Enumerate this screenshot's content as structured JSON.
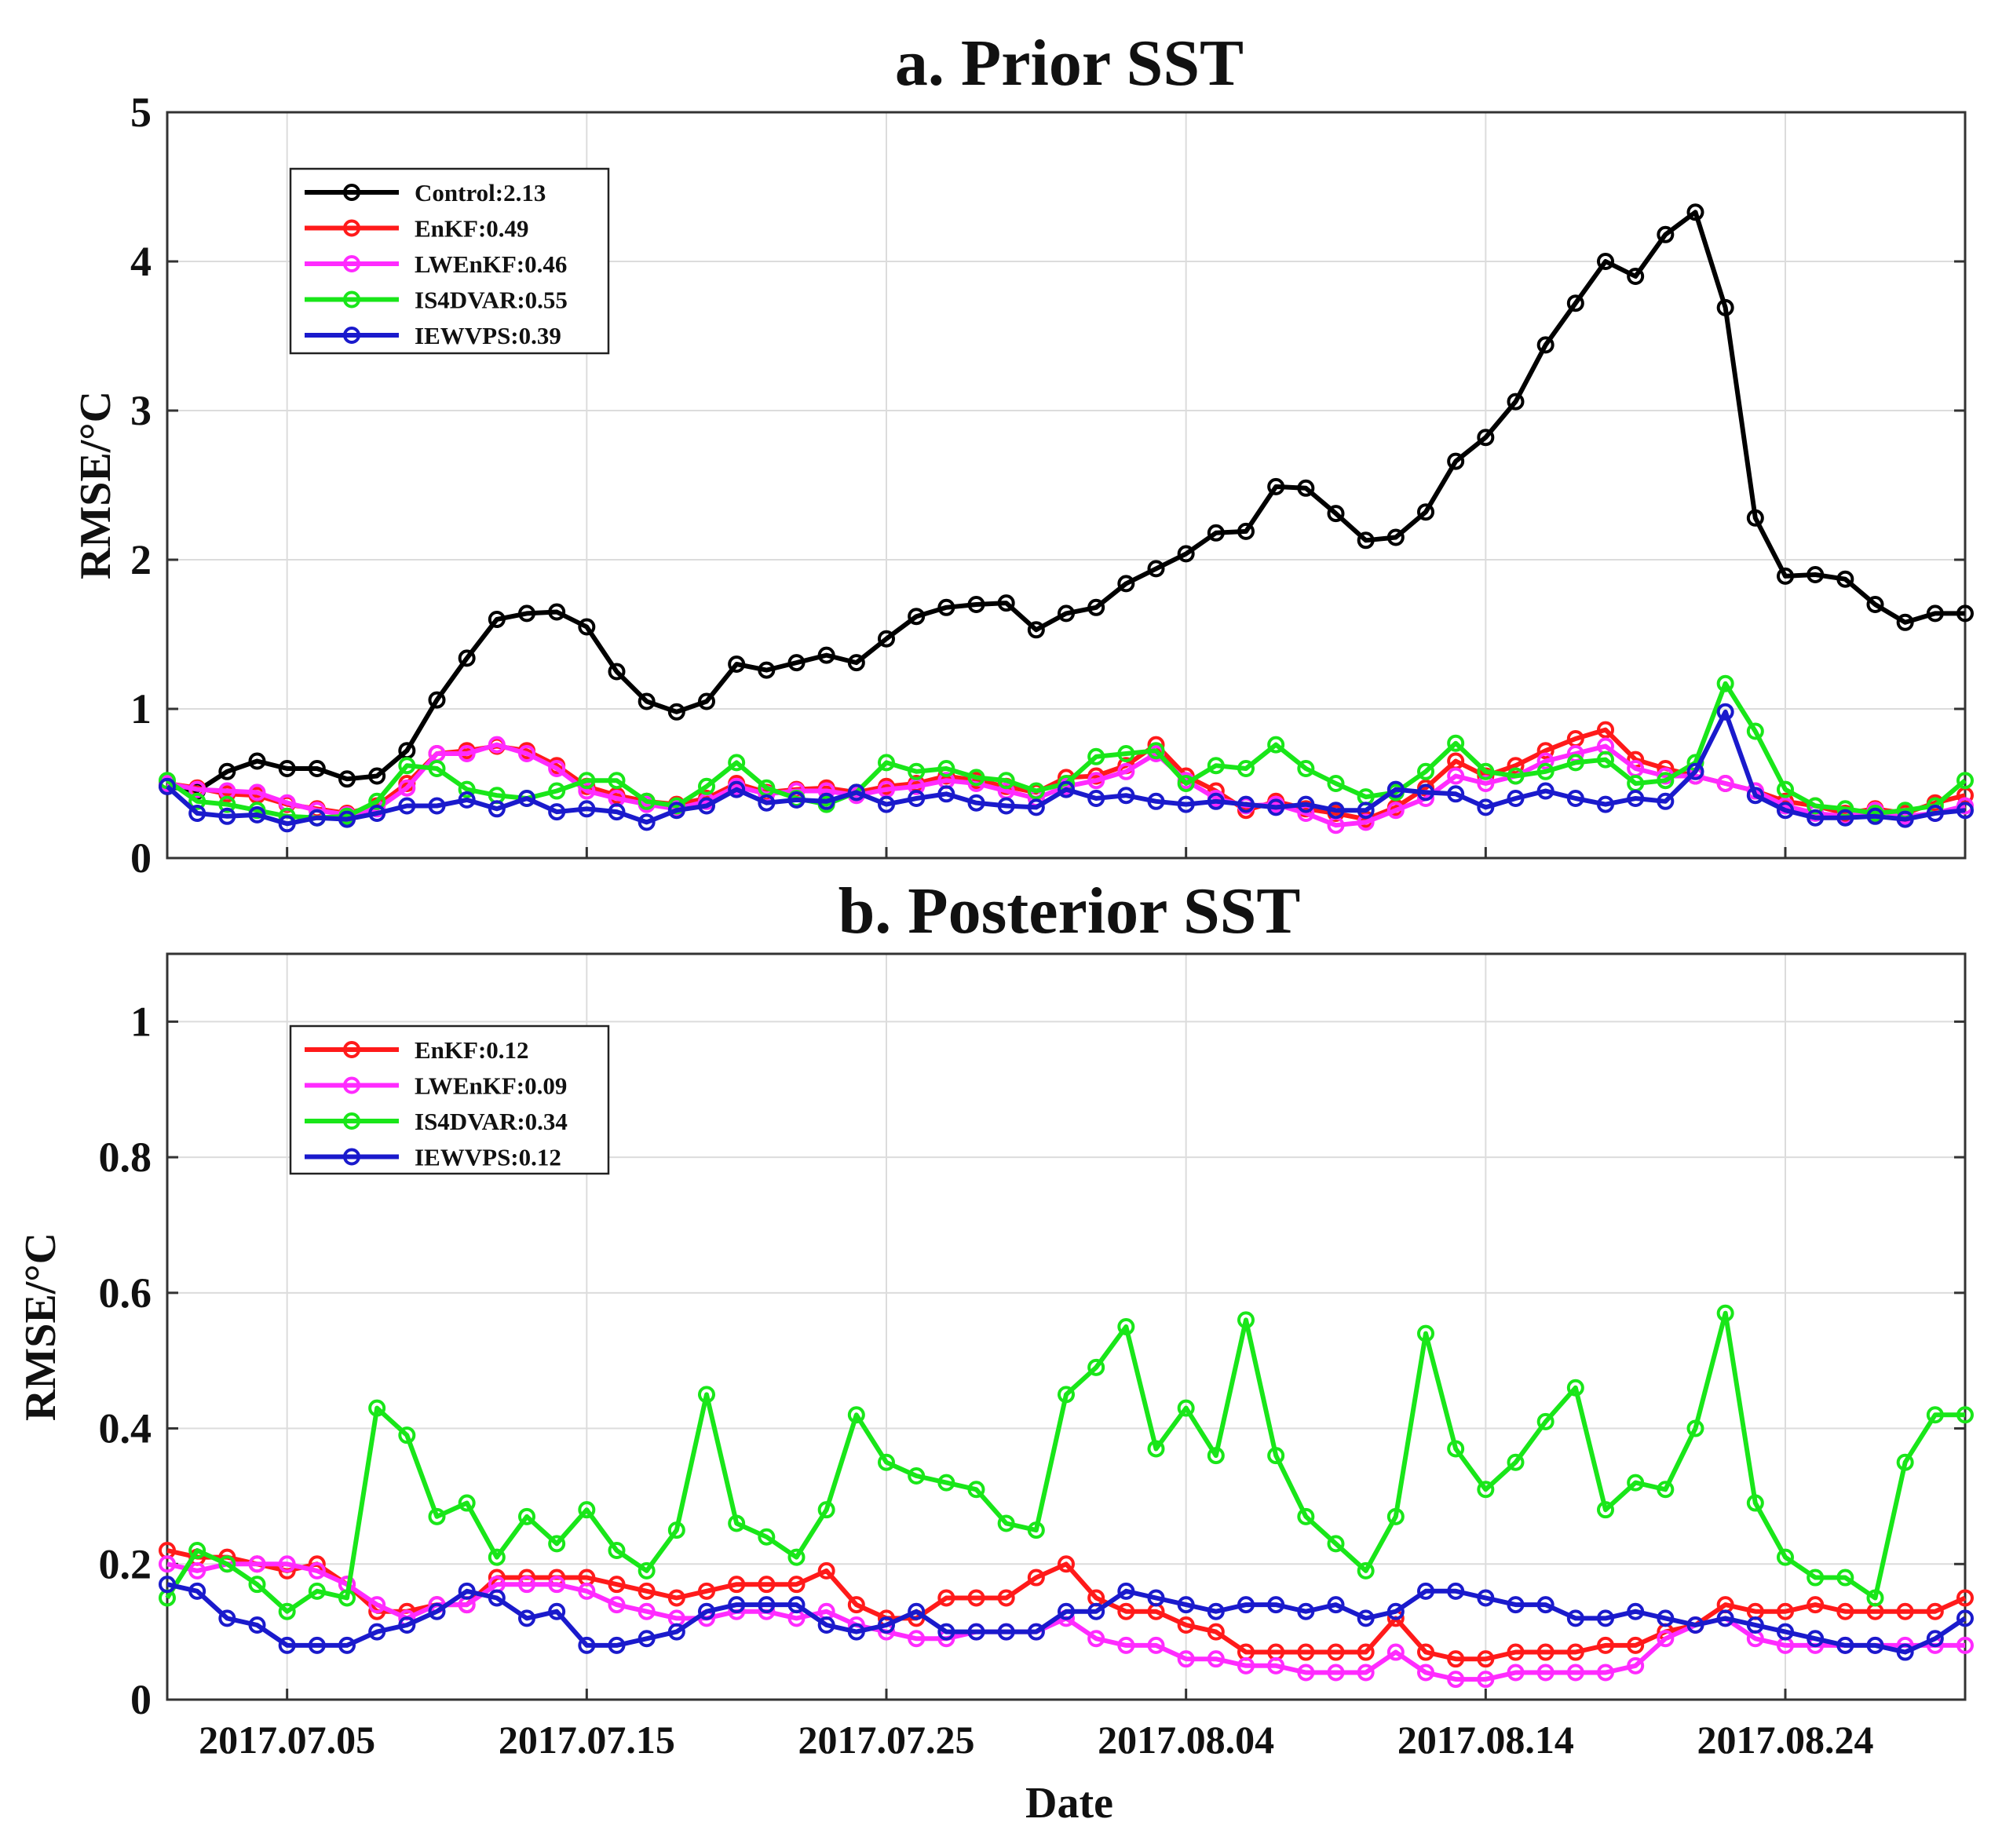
{
  "chart_data": [
    {
      "type": "line",
      "title": "a. Prior SST",
      "xlabel": "",
      "ylabel": "RMSE/°C",
      "ylim": [
        0,
        5
      ],
      "yticks": [
        "0",
        "1",
        "2",
        "3",
        "4",
        "5"
      ],
      "x_start": "2017.07.01",
      "x_step_days": 1,
      "x_count": 61,
      "legend_position": "top-left",
      "grid": true,
      "series": [
        {
          "name": "Control",
          "label": "Control:2.13",
          "color": "#000000",
          "values": [
            0.48,
            0.45,
            0.58,
            0.65,
            0.6,
            0.6,
            0.53,
            0.55,
            0.72,
            1.06,
            1.34,
            1.6,
            1.64,
            1.65,
            1.55,
            1.25,
            1.05,
            0.98,
            1.05,
            1.3,
            1.26,
            1.31,
            1.36,
            1.31,
            1.47,
            1.62,
            1.68,
            1.7,
            1.71,
            1.53,
            1.64,
            1.68,
            1.84,
            1.94,
            2.04,
            2.18,
            2.19,
            2.49,
            2.48,
            2.31,
            2.13,
            2.15,
            2.32,
            2.66,
            2.82,
            3.06,
            3.44,
            3.72,
            4.0,
            3.9,
            4.18,
            4.33,
            3.69,
            2.28,
            1.89,
            1.9,
            1.87,
            1.7,
            1.58,
            1.64,
            1.64
          ]
        },
        {
          "name": "EnKF",
          "label": "EnKF:0.49",
          "color": "#ff1a1a",
          "values": [
            0.5,
            0.47,
            0.43,
            0.42,
            0.36,
            0.33,
            0.3,
            0.35,
            0.5,
            0.7,
            0.72,
            0.75,
            0.72,
            0.62,
            0.48,
            0.42,
            0.38,
            0.36,
            0.4,
            0.5,
            0.44,
            0.46,
            0.47,
            0.44,
            0.48,
            0.5,
            0.55,
            0.52,
            0.48,
            0.44,
            0.54,
            0.55,
            0.62,
            0.76,
            0.55,
            0.45,
            0.32,
            0.38,
            0.33,
            0.3,
            0.26,
            0.34,
            0.47,
            0.65,
            0.55,
            0.62,
            0.72,
            0.8,
            0.86,
            0.66,
            0.6,
            0.55,
            0.5,
            0.45,
            0.38,
            0.35,
            0.3,
            0.33,
            0.3,
            0.37,
            0.42
          ]
        },
        {
          "name": "LWEnKF",
          "label": "LWEnKF:0.46",
          "color": "#ff2bff",
          "values": [
            0.5,
            0.46,
            0.45,
            0.44,
            0.37,
            0.32,
            0.29,
            0.33,
            0.47,
            0.7,
            0.7,
            0.76,
            0.7,
            0.6,
            0.45,
            0.4,
            0.36,
            0.33,
            0.38,
            0.48,
            0.43,
            0.45,
            0.45,
            0.42,
            0.46,
            0.48,
            0.52,
            0.5,
            0.45,
            0.4,
            0.48,
            0.52,
            0.58,
            0.7,
            0.52,
            0.4,
            0.35,
            0.36,
            0.3,
            0.22,
            0.24,
            0.32,
            0.4,
            0.55,
            0.5,
            0.55,
            0.65,
            0.7,
            0.75,
            0.6,
            0.55,
            0.55,
            0.5,
            0.45,
            0.35,
            0.3,
            0.28,
            0.32,
            0.28,
            0.3,
            0.35
          ]
        },
        {
          "name": "IS4DVAR",
          "label": "IS4DVAR:0.55",
          "color": "#19e619",
          "values": [
            0.52,
            0.38,
            0.36,
            0.32,
            0.28,
            0.27,
            0.28,
            0.38,
            0.62,
            0.6,
            0.46,
            0.42,
            0.4,
            0.45,
            0.52,
            0.52,
            0.38,
            0.35,
            0.48,
            0.64,
            0.47,
            0.4,
            0.36,
            0.44,
            0.64,
            0.58,
            0.6,
            0.54,
            0.52,
            0.45,
            0.5,
            0.68,
            0.7,
            0.72,
            0.5,
            0.62,
            0.6,
            0.76,
            0.6,
            0.5,
            0.41,
            0.44,
            0.58,
            0.77,
            0.58,
            0.55,
            0.58,
            0.64,
            0.66,
            0.5,
            0.52,
            0.64,
            1.17,
            0.85,
            0.46,
            0.35,
            0.33,
            0.3,
            0.32,
            0.35,
            0.52
          ]
        },
        {
          "name": "IEWVPS",
          "label": "IEWVPS:0.39",
          "color": "#1a1acc",
          "values": [
            0.48,
            0.3,
            0.28,
            0.29,
            0.23,
            0.27,
            0.26,
            0.3,
            0.35,
            0.35,
            0.39,
            0.33,
            0.4,
            0.31,
            0.33,
            0.31,
            0.24,
            0.32,
            0.35,
            0.46,
            0.37,
            0.39,
            0.38,
            0.44,
            0.36,
            0.4,
            0.43,
            0.37,
            0.35,
            0.34,
            0.46,
            0.4,
            0.42,
            0.38,
            0.36,
            0.38,
            0.36,
            0.34,
            0.36,
            0.32,
            0.32,
            0.46,
            0.44,
            0.43,
            0.34,
            0.4,
            0.45,
            0.4,
            0.36,
            0.4,
            0.38,
            0.58,
            0.98,
            0.42,
            0.32,
            0.27,
            0.27,
            0.28,
            0.26,
            0.3,
            0.32
          ]
        }
      ]
    },
    {
      "type": "line",
      "title": "b. Posterior SST",
      "xlabel": "Date",
      "ylabel": "RMSE/°C",
      "ylim": [
        0,
        1.1
      ],
      "yticks": [
        "0",
        "0.2",
        "0.4",
        "0.6",
        "0.8",
        "1"
      ],
      "x_start": "2017.07.01",
      "x_step_days": 1,
      "x_count": 61,
      "xticks": [
        "2017.07.05",
        "2017.07.15",
        "2017.07.25",
        "2017.08.04",
        "2017.08.14",
        "2017.08.24"
      ],
      "legend_position": "top-left",
      "grid": true,
      "series": [
        {
          "name": "EnKF",
          "label": "EnKF:0.12",
          "color": "#ff1a1a",
          "values": [
            0.22,
            0.21,
            0.21,
            0.2,
            0.19,
            0.2,
            0.17,
            0.13,
            0.13,
            0.14,
            0.14,
            0.18,
            0.18,
            0.18,
            0.18,
            0.17,
            0.16,
            0.15,
            0.16,
            0.17,
            0.17,
            0.17,
            0.19,
            0.14,
            0.12,
            0.12,
            0.15,
            0.15,
            0.15,
            0.18,
            0.2,
            0.15,
            0.13,
            0.13,
            0.11,
            0.1,
            0.07,
            0.07,
            0.07,
            0.07,
            0.07,
            0.12,
            0.07,
            0.06,
            0.06,
            0.07,
            0.07,
            0.07,
            0.08,
            0.08,
            0.1,
            0.11,
            0.14,
            0.13,
            0.13,
            0.14,
            0.13,
            0.13,
            0.13,
            0.13,
            0.15
          ]
        },
        {
          "name": "LWEnKF",
          "label": "LWEnKF:0.09",
          "color": "#ff2bff",
          "values": [
            0.2,
            0.19,
            0.2,
            0.2,
            0.2,
            0.19,
            0.17,
            0.14,
            0.12,
            0.14,
            0.14,
            0.17,
            0.17,
            0.17,
            0.16,
            0.14,
            0.13,
            0.12,
            0.12,
            0.13,
            0.13,
            0.12,
            0.13,
            0.11,
            0.1,
            0.09,
            0.09,
            0.1,
            0.1,
            0.1,
            0.12,
            0.09,
            0.08,
            0.08,
            0.06,
            0.06,
            0.05,
            0.05,
            0.04,
            0.04,
            0.04,
            0.07,
            0.04,
            0.03,
            0.03,
            0.04,
            0.04,
            0.04,
            0.04,
            0.05,
            0.09,
            0.11,
            0.12,
            0.09,
            0.08,
            0.08,
            0.08,
            0.08,
            0.08,
            0.08,
            0.08
          ]
        },
        {
          "name": "IS4DVAR",
          "label": "IS4DVAR:0.34",
          "color": "#19e619",
          "values": [
            0.15,
            0.22,
            0.2,
            0.17,
            0.13,
            0.16,
            0.15,
            0.43,
            0.39,
            0.27,
            0.29,
            0.21,
            0.27,
            0.23,
            0.28,
            0.22,
            0.19,
            0.25,
            0.45,
            0.26,
            0.24,
            0.21,
            0.28,
            0.42,
            0.35,
            0.33,
            0.32,
            0.31,
            0.26,
            0.25,
            0.45,
            0.49,
            0.55,
            0.37,
            0.43,
            0.36,
            0.56,
            0.36,
            0.27,
            0.23,
            0.19,
            0.27,
            0.54,
            0.37,
            0.31,
            0.35,
            0.41,
            0.46,
            0.28,
            0.32,
            0.31,
            0.4,
            0.57,
            0.29,
            0.21,
            0.18,
            0.18,
            0.15,
            0.35,
            0.42,
            0.42
          ]
        },
        {
          "name": "IEWVPS",
          "label": "IEWVPS:0.12",
          "color": "#1a1acc",
          "values": [
            0.17,
            0.16,
            0.12,
            0.11,
            0.08,
            0.08,
            0.08,
            0.1,
            0.11,
            0.13,
            0.16,
            0.15,
            0.12,
            0.13,
            0.08,
            0.08,
            0.09,
            0.1,
            0.13,
            0.14,
            0.14,
            0.14,
            0.11,
            0.1,
            0.11,
            0.13,
            0.1,
            0.1,
            0.1,
            0.1,
            0.13,
            0.13,
            0.16,
            0.15,
            0.14,
            0.13,
            0.14,
            0.14,
            0.13,
            0.14,
            0.12,
            0.13,
            0.16,
            0.16,
            0.15,
            0.14,
            0.14,
            0.12,
            0.12,
            0.13,
            0.12,
            0.11,
            0.12,
            0.11,
            0.1,
            0.09,
            0.08,
            0.08,
            0.07,
            0.09,
            0.12
          ]
        }
      ]
    }
  ]
}
